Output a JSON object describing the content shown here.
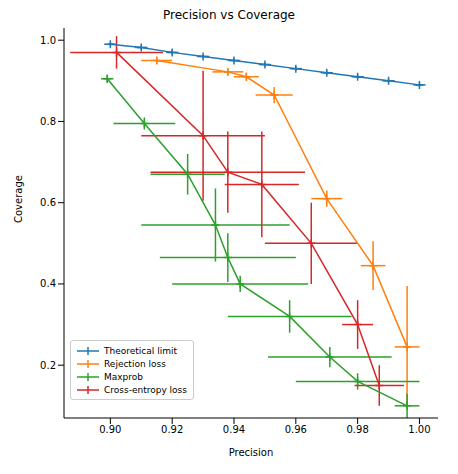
{
  "chart_data": {
    "type": "scatter",
    "title": "Precision vs Coverage",
    "x_label": "Precision",
    "y_label": "Coverage",
    "xlim": [
      0.885,
      1.006
    ],
    "ylim": [
      0.07,
      1.03
    ],
    "xticks": [
      {
        "value": 0.9,
        "label": "0.90"
      },
      {
        "value": 0.92,
        "label": "0.92"
      },
      {
        "value": 0.94,
        "label": "0.94"
      },
      {
        "value": 0.96,
        "label": "0.96"
      },
      {
        "value": 0.98,
        "label": "0.98"
      },
      {
        "value": 1.0,
        "label": "1.00"
      }
    ],
    "yticks": [
      0.2,
      0.4,
      0.6,
      0.8,
      {
        "value": 1.0,
        "label": "1.0"
      }
    ],
    "grid": false,
    "legend": "lower left",
    "marker": "plus",
    "line_style": "solid",
    "series": [
      {
        "name": "Theoretical limit",
        "color": "#1f77b4",
        "x": [
          0.9,
          0.91,
          0.92,
          0.93,
          0.94,
          0.95,
          0.96,
          0.97,
          0.98,
          0.99,
          1.0
        ],
        "values": [
          0.99,
          0.982,
          0.97,
          0.96,
          0.95,
          0.94,
          0.93,
          0.92,
          0.91,
          0.9,
          0.89
        ],
        "x_errors": [
          0.002,
          0.002,
          0.002,
          0.002,
          0.002,
          0.002,
          0.002,
          0.002,
          0.002,
          0.002,
          0.002
        ],
        "y_errors": [
          0.005,
          0.005,
          0.005,
          0.005,
          0.005,
          0.005,
          0.005,
          0.005,
          0.005,
          0.005,
          0.005
        ]
      },
      {
        "name": "Rejection loss",
        "color": "#ff7f0e",
        "x": [
          0.915,
          0.938,
          0.944,
          0.953,
          0.97,
          0.985,
          0.996
        ],
        "values": [
          0.95,
          0.922,
          0.91,
          0.865,
          0.61,
          0.445,
          0.245
        ],
        "x_errors": [
          0.005,
          0.005,
          0.004,
          0.006,
          0.005,
          0.004,
          0.004
        ],
        "y_errors": [
          0.008,
          0.008,
          0.01,
          0.02,
          0.02,
          0.06,
          0.15
        ]
      },
      {
        "name": "Maxprob",
        "color": "#2ca02c",
        "x": [
          0.899,
          0.911,
          0.925,
          0.934,
          0.938,
          0.942,
          0.958,
          0.971,
          0.98,
          0.996
        ],
        "values": [
          0.905,
          0.795,
          0.67,
          0.545,
          0.465,
          0.4,
          0.32,
          0.22,
          0.16,
          0.1
        ],
        "x_errors": [
          0.002,
          0.01,
          0.012,
          0.024,
          0.022,
          0.022,
          0.02,
          0.02,
          0.02,
          0.004
        ],
        "y_errors": [
          0.01,
          0.015,
          0.05,
          0.09,
          0.06,
          0.02,
          0.04,
          0.025,
          0.02,
          0.03
        ]
      },
      {
        "name": "Cross-entropy loss",
        "color": "#d62728",
        "x": [
          0.902,
          0.93,
          0.938,
          0.949,
          0.965,
          0.98,
          0.987
        ],
        "values": [
          0.97,
          0.765,
          0.675,
          0.645,
          0.5,
          0.3,
          0.15
        ],
        "x_errors": [
          0.015,
          0.02,
          0.025,
          0.012,
          0.015,
          0.005,
          0.008
        ],
        "y_errors": [
          0.04,
          0.16,
          0.1,
          0.13,
          0.1,
          0.06,
          0.05
        ]
      }
    ]
  }
}
